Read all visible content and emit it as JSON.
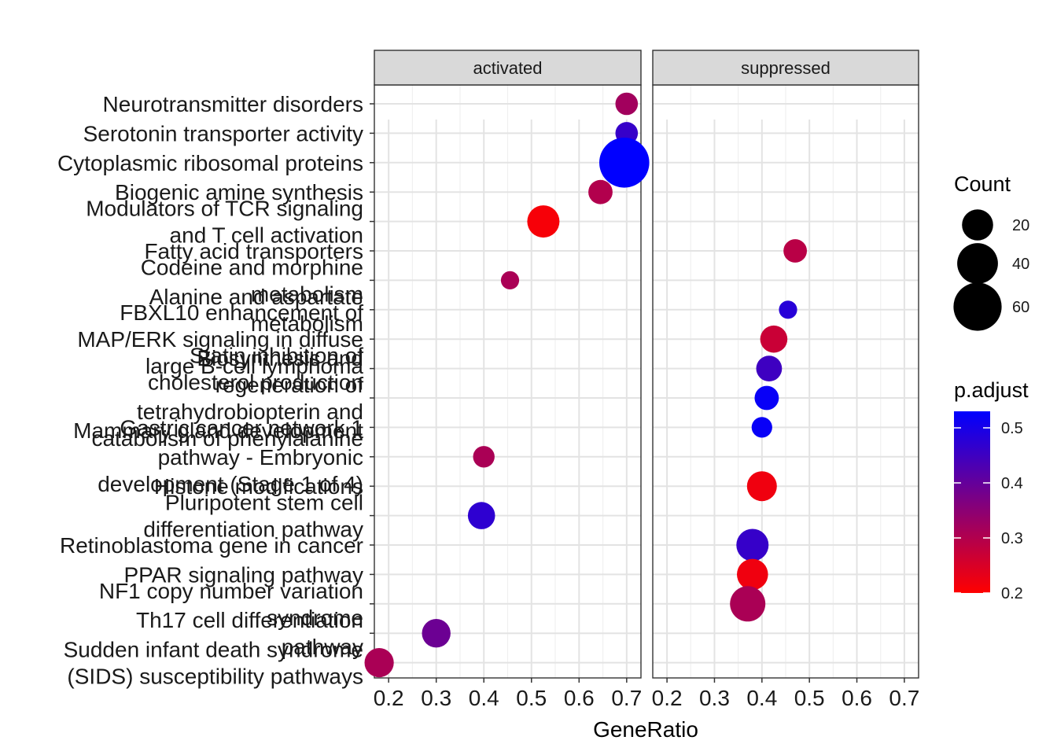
{
  "chart_data": {
    "type": "scatter",
    "xlabel": "GeneRatio",
    "xlim": [
      0.17,
      0.73
    ],
    "x_ticks": [
      "0.2",
      "0.3",
      "0.4",
      "0.5",
      "0.6",
      "0.7"
    ],
    "grid": true,
    "panels": [
      "activated",
      "suppressed"
    ],
    "categories": [
      [
        "Neurotransmitter disorders"
      ],
      [
        "Serotonin transporter activity"
      ],
      [
        "Cytoplasmic ribosomal proteins"
      ],
      [
        "Biogenic amine synthesis"
      ],
      [
        "Modulators of TCR signaling",
        "and T cell activation"
      ],
      [
        "Fatty acid transporters"
      ],
      [
        "Codeine and morphine",
        "metabolism"
      ],
      [
        "Alanine and aspartate",
        "metabolism"
      ],
      [
        "FBXL10 enhancement of",
        "MAP/ERK signaling in diffuse",
        "large B-cell lymphoma"
      ],
      [
        "Statin inhibition of",
        "cholesterol production"
      ],
      [
        "Biosynthesis and",
        "regeneration of",
        "tetrahydrobiopterin and",
        "catabolism of phenylalanine"
      ],
      [
        "Gastric cancer network 1"
      ],
      [
        "Mammary gland development",
        "pathway - Embryonic",
        "development (Stage 1 of 4)"
      ],
      [
        "Histone modifications"
      ],
      [
        "Pluripotent stem cell",
        "differentiation pathway"
      ],
      [
        "Retinoblastoma gene in cancer"
      ],
      [
        "PPAR signaling pathway"
      ],
      [
        "NF1 copy number variation",
        "syndrome"
      ],
      [
        "Th17 cell differentiation",
        "pathway"
      ],
      [
        "Sudden infant death syndrome",
        "(SIDS) susceptibility pathways"
      ]
    ],
    "points": [
      {
        "panel": "activated",
        "category": 0,
        "x": 0.7,
        "count": 8,
        "p_adjust": 0.32
      },
      {
        "panel": "activated",
        "category": 1,
        "x": 0.7,
        "count": 8,
        "p_adjust": 0.46
      },
      {
        "panel": "activated",
        "category": 2,
        "x": 0.695,
        "count": 66,
        "p_adjust": 0.53
      },
      {
        "panel": "activated",
        "category": 3,
        "x": 0.645,
        "count": 10,
        "p_adjust": 0.3
      },
      {
        "panel": "activated",
        "category": 4,
        "x": 0.525,
        "count": 22,
        "p_adjust": 0.21
      },
      {
        "panel": "suppressed",
        "category": 5,
        "x": 0.47,
        "count": 9,
        "p_adjust": 0.29
      },
      {
        "panel": "activated",
        "category": 6,
        "x": 0.455,
        "count": 4,
        "p_adjust": 0.31
      },
      {
        "panel": "suppressed",
        "category": 7,
        "x": 0.455,
        "count": 4,
        "p_adjust": 0.48
      },
      {
        "panel": "suppressed",
        "category": 8,
        "x": 0.425,
        "count": 14,
        "p_adjust": 0.27
      },
      {
        "panel": "suppressed",
        "category": 9,
        "x": 0.415,
        "count": 12,
        "p_adjust": 0.45
      },
      {
        "panel": "suppressed",
        "category": 10,
        "x": 0.41,
        "count": 10,
        "p_adjust": 0.52
      },
      {
        "panel": "suppressed",
        "category": 11,
        "x": 0.4,
        "count": 6,
        "p_adjust": 0.52
      },
      {
        "panel": "activated",
        "category": 12,
        "x": 0.4,
        "count": 7,
        "p_adjust": 0.31
      },
      {
        "panel": "suppressed",
        "category": 13,
        "x": 0.4,
        "count": 18,
        "p_adjust": 0.22
      },
      {
        "panel": "activated",
        "category": 14,
        "x": 0.395,
        "count": 14,
        "p_adjust": 0.47
      },
      {
        "panel": "suppressed",
        "category": 15,
        "x": 0.38,
        "count": 22,
        "p_adjust": 0.46
      },
      {
        "panel": "suppressed",
        "category": 16,
        "x": 0.38,
        "count": 20,
        "p_adjust": 0.22
      },
      {
        "panel": "suppressed",
        "category": 17,
        "x": 0.37,
        "count": 28,
        "p_adjust": 0.31
      },
      {
        "panel": "activated",
        "category": 18,
        "x": 0.3,
        "count": 16,
        "p_adjust": 0.39
      },
      {
        "panel": "activated",
        "category": 19,
        "x": 0.18,
        "count": 17,
        "p_adjust": 0.31
      }
    ],
    "legend": {
      "size": {
        "title": "Count",
        "breaks": [
          20,
          40,
          60
        ],
        "labels": [
          "20",
          "40",
          "60"
        ]
      },
      "color": {
        "title": "p.adjust",
        "breaks": [
          0.2,
          0.3,
          0.4,
          0.5
        ],
        "labels": [
          "0.2",
          "0.3",
          "0.4",
          "0.5"
        ],
        "low": "#ff0000",
        "high": "#0000ff",
        "range": [
          0.2,
          0.53
        ]
      }
    }
  }
}
